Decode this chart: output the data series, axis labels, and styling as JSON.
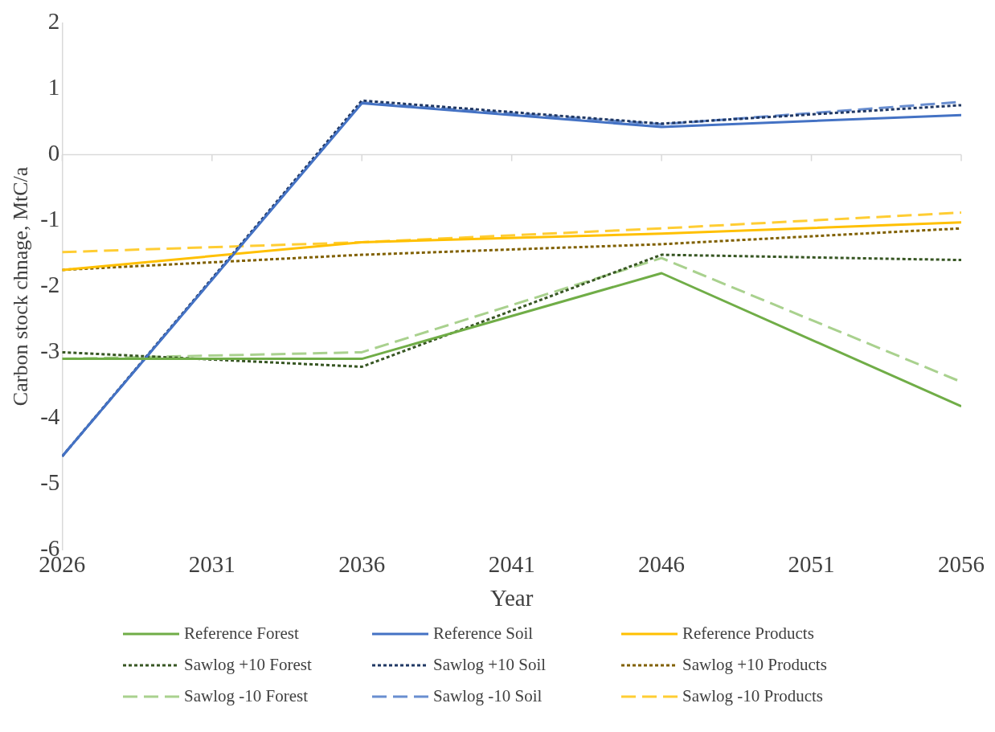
{
  "chart_data": {
    "type": "line",
    "xlabel": "Year",
    "ylabel": "Carbon stock chnage, MtC/a",
    "x": [
      2026,
      2036,
      2046,
      2056
    ],
    "xlim": [
      2026,
      2056
    ],
    "xticks": [
      2026,
      2031,
      2036,
      2041,
      2046,
      2051,
      2056
    ],
    "ylim": [
      -6,
      2
    ],
    "yticks": [
      -6,
      -5,
      -4,
      -3,
      -2,
      -1,
      0,
      1,
      2
    ],
    "grid": false,
    "legend": "bottom",
    "marker": "none",
    "ref_lines": [
      {
        "axis": "y",
        "value": 0,
        "color": "#d9d9d9"
      }
    ],
    "series": [
      {
        "name": "Reference Forest",
        "color": "#70ad47",
        "line_style": "solid",
        "values": [
          -3.1,
          -3.1,
          -1.8,
          -3.82
        ]
      },
      {
        "name": "Reference Soil",
        "color": "#4472c4",
        "line_style": "solid",
        "values": [
          -4.58,
          0.78,
          0.42,
          0.6
        ]
      },
      {
        "name": "Reference Products",
        "color": "#ffc000",
        "line_style": "solid",
        "values": [
          -1.75,
          -1.33,
          -1.2,
          -1.03
        ]
      },
      {
        "name": "Sawlog +10 Forest",
        "color": "#375623",
        "line_style": "dotted",
        "values": [
          -3.0,
          -3.22,
          -1.52,
          -1.6
        ]
      },
      {
        "name": "Sawlog +10 Soil",
        "color": "#203864",
        "line_style": "dotted",
        "values": [
          -4.58,
          0.82,
          0.47,
          0.75
        ]
      },
      {
        "name": "Sawlog +10 Products",
        "color": "#806000",
        "line_style": "dotted",
        "values": [
          -1.75,
          -1.52,
          -1.36,
          -1.12
        ]
      },
      {
        "name": "Sawlog -10 Forest",
        "color": "#a9d18e",
        "line_style": "dashed",
        "values": [
          -3.1,
          -3.0,
          -1.57,
          -3.45
        ]
      },
      {
        "name": "Sawlog -10 Soil",
        "color": "#698ed0",
        "line_style": "dashed",
        "values": [
          -4.58,
          0.79,
          0.46,
          0.8
        ]
      },
      {
        "name": "Sawlog -10 Products",
        "color": "#ffcd33",
        "line_style": "dashed",
        "values": [
          -1.48,
          -1.33,
          -1.12,
          -0.88
        ]
      }
    ]
  }
}
